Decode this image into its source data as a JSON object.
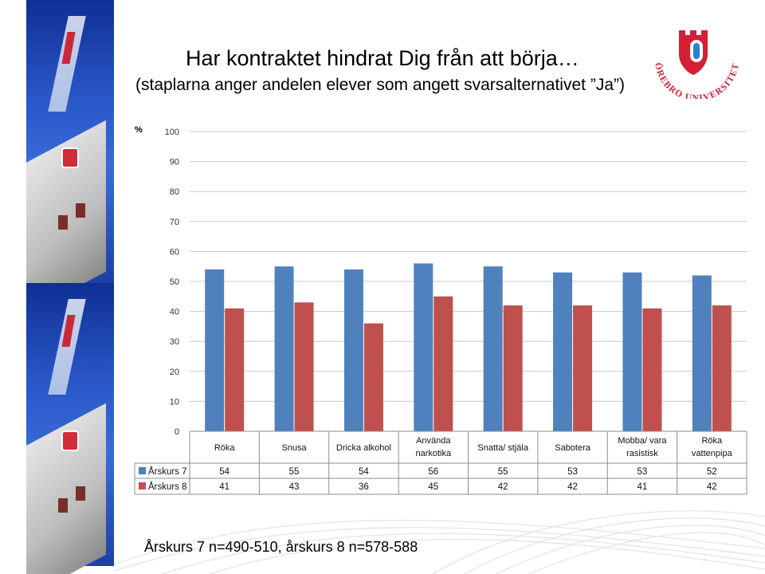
{
  "title": "Har kontraktet hindrat Dig från att börja…",
  "subtitle": "(staplarna anger andelen elever som angett svarsalternativet ”Ja”)",
  "logo_text": "ÖREBRO UNIVERSITET",
  "footnote": "Årskurs 7 n=490-510, årskurs 8 n=578-588",
  "colors": {
    "series1": "#4f81bd",
    "series2": "#c0504d",
    "grid": "#c9c9c9",
    "axis": "#8c8c8c"
  },
  "chart_data": {
    "type": "bar",
    "ylabel": "%",
    "ylim": [
      0,
      100
    ],
    "yticks": [
      "0",
      "10",
      "20",
      "30",
      "40",
      "50",
      "60",
      "70",
      "80",
      "90",
      "100"
    ],
    "grid": true,
    "legend": "in data table rows",
    "categories": [
      [
        "Röka"
      ],
      [
        "Snusa"
      ],
      [
        "Dricka alkohol"
      ],
      [
        "Använda",
        "narkotika"
      ],
      [
        "Snatta/ stjäla"
      ],
      [
        "Sabotera"
      ],
      [
        "Mobba/ vara",
        "rasistisk"
      ],
      [
        "Röka",
        "vattenpipa"
      ]
    ],
    "series": [
      {
        "name": "Årskurs 7",
        "values": [
          54,
          55,
          54,
          56,
          55,
          53,
          53,
          52
        ]
      },
      {
        "name": "Årskurs 8",
        "values": [
          41,
          43,
          36,
          45,
          42,
          42,
          41,
          42
        ]
      }
    ]
  }
}
